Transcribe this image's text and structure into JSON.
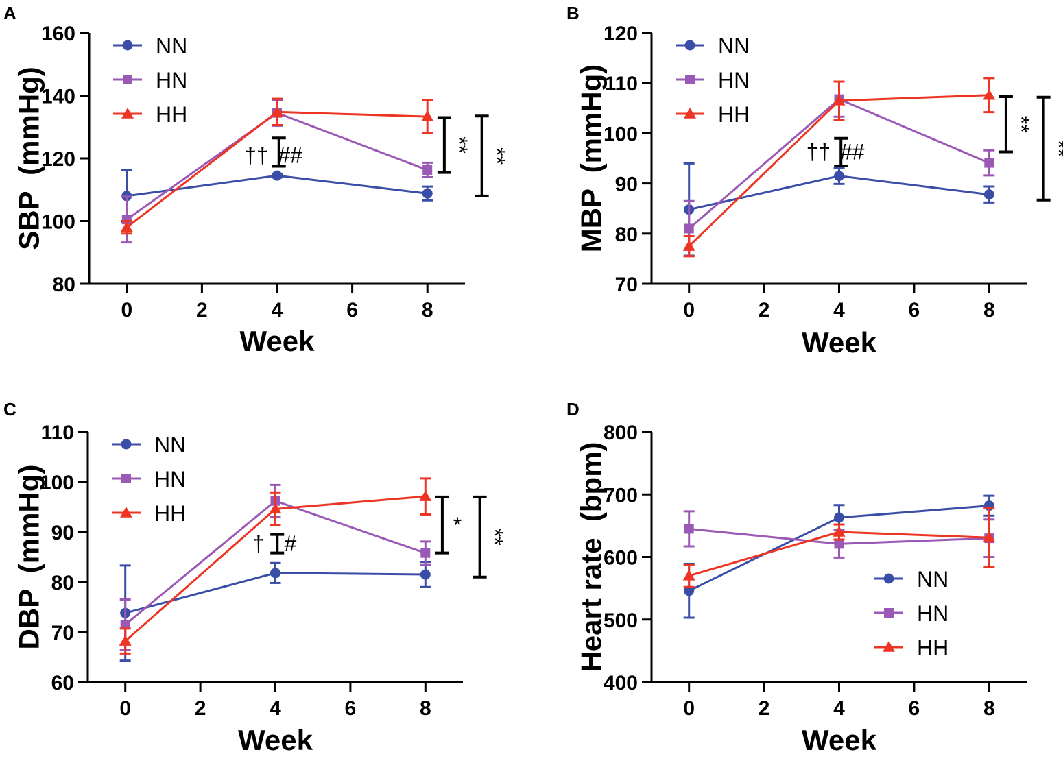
{
  "colors": {
    "NN": "#3a4ea8",
    "HN": "#9b59b6",
    "HH": "#ee3524",
    "sig": "#000000",
    "dagger": "#ee3524",
    "hash": "#9b59b6"
  },
  "chart_data": [
    {
      "type": "line",
      "panel": "A",
      "xlabel": "Week",
      "ylabel": "SBP  (mmHg)",
      "x": [
        0,
        4,
        8
      ],
      "xlim": [
        -1,
        9
      ],
      "xticks": [
        0,
        2,
        4,
        6,
        8
      ],
      "ylim": [
        80,
        160
      ],
      "yticks": [
        80,
        100,
        120,
        140,
        160
      ],
      "legend": "top-left",
      "series": [
        {
          "name": "NN",
          "marker": "circle",
          "values": [
            108,
            114.5,
            108.8
          ],
          "errors": [
            8.3,
            0.6,
            2.2
          ]
        },
        {
          "name": "HN",
          "marker": "square",
          "values": [
            100.5,
            134.5,
            116.3
          ],
          "errors": [
            7.3,
            4.1,
            2.3
          ]
        },
        {
          "name": "HH",
          "marker": "triangle",
          "values": [
            98,
            134.8,
            133.3
          ],
          "errors": [
            2,
            4.2,
            5.3
          ]
        }
      ],
      "brackets": [
        {
          "x": 4.05,
          "y1": 117.5,
          "y2": 126.5,
          "label": "",
          "label_pos": "right"
        },
        {
          "x": 8.45,
          "y1": 115.5,
          "y2": 133,
          "label": "**",
          "label_pos": "right",
          "rotate": true
        },
        {
          "x": 9.45,
          "y1": 108,
          "y2": 133.5,
          "label": "**",
          "label_pos": "right",
          "rotate": true
        }
      ],
      "annotations": [
        {
          "text": "††",
          "x": 3.45,
          "y": 121,
          "color_key": "dagger"
        },
        {
          "text": "##",
          "x": 4.35,
          "y": 121,
          "color_key": "hash"
        }
      ]
    },
    {
      "type": "line",
      "panel": "B",
      "xlabel": "Week",
      "ylabel": "MBP  (mmHg)",
      "x": [
        0,
        4,
        8
      ],
      "xlim": [
        -1,
        9
      ],
      "xticks": [
        0,
        2,
        4,
        6,
        8
      ],
      "ylim": [
        70,
        120
      ],
      "yticks": [
        70,
        80,
        90,
        100,
        110,
        120
      ],
      "legend": "top-left",
      "series": [
        {
          "name": "NN",
          "marker": "circle",
          "values": [
            84.8,
            91.5,
            87.8
          ],
          "errors": [
            9.2,
            1.6,
            1.6
          ]
        },
        {
          "name": "HN",
          "marker": "square",
          "values": [
            81,
            106.8,
            94.1
          ],
          "errors": [
            5.5,
            3.5,
            2.5
          ]
        },
        {
          "name": "HH",
          "marker": "triangle",
          "values": [
            77.5,
            106.5,
            107.6
          ],
          "errors": [
            2,
            3.8,
            3.4
          ]
        }
      ],
      "brackets": [
        {
          "x": 4.05,
          "y1": 93.5,
          "y2": 99,
          "label": "",
          "label_pos": "right"
        },
        {
          "x": 8.45,
          "y1": 96.3,
          "y2": 107.3,
          "label": "**",
          "label_pos": "right",
          "rotate": true
        },
        {
          "x": 9.45,
          "y1": 86.7,
          "y2": 107.2,
          "label": "**",
          "label_pos": "right",
          "rotate": true
        }
      ],
      "annotations": [
        {
          "text": "††",
          "x": 3.45,
          "y": 96.3,
          "color_key": "dagger"
        },
        {
          "text": "##",
          "x": 4.35,
          "y": 96.3,
          "color_key": "hash"
        }
      ]
    },
    {
      "type": "line",
      "panel": "C",
      "xlabel": "Week",
      "ylabel": "DBP  (mmHg)",
      "x": [
        0,
        4,
        8
      ],
      "xlim": [
        -1,
        9
      ],
      "xticks": [
        0,
        2,
        4,
        6,
        8
      ],
      "ylim": [
        60,
        110
      ],
      "yticks": [
        60,
        70,
        80,
        90,
        100,
        110
      ],
      "legend": "top-left",
      "series": [
        {
          "name": "NN",
          "marker": "circle",
          "values": [
            73.8,
            81.8,
            81.5
          ],
          "errors": [
            9.5,
            2,
            2.5
          ]
        },
        {
          "name": "HN",
          "marker": "square",
          "values": [
            71.5,
            96.2,
            85.8
          ],
          "errors": [
            5,
            3.2,
            2.3
          ]
        },
        {
          "name": "HH",
          "marker": "triangle",
          "values": [
            68.2,
            94.6,
            97.1
          ],
          "errors": [
            2.5,
            3.3,
            3.6
          ]
        }
      ],
      "brackets": [
        {
          "x": 4.05,
          "y1": 85.8,
          "y2": 89.5,
          "label": "",
          "label_pos": "right"
        },
        {
          "x": 8.45,
          "y1": 85.8,
          "y2": 97,
          "label": "*",
          "label_pos": "right"
        },
        {
          "x": 9.45,
          "y1": 81,
          "y2": 97,
          "label": "**",
          "label_pos": "right",
          "rotate": true
        }
      ],
      "annotations": [
        {
          "text": "†",
          "x": 3.55,
          "y": 87.7,
          "color_key": "dagger"
        },
        {
          "text": "#",
          "x": 4.4,
          "y": 87.7,
          "color_key": "hash"
        }
      ]
    },
    {
      "type": "line",
      "panel": "D",
      "xlabel": "Week",
      "ylabel": "Heart rate  (bpm)",
      "x": [
        0,
        4,
        8
      ],
      "xlim": [
        -1,
        9
      ],
      "xticks": [
        0,
        2,
        4,
        6,
        8
      ],
      "ylim": [
        400,
        800
      ],
      "yticks": [
        400,
        500,
        600,
        700,
        800
      ],
      "legend": "bottom-right",
      "series": [
        {
          "name": "NN",
          "marker": "circle",
          "values": [
            546,
            663,
            682
          ],
          "errors": [
            43,
            20,
            16
          ]
        },
        {
          "name": "HN",
          "marker": "square",
          "values": [
            645,
            621,
            630
          ],
          "errors": [
            28,
            22,
            30
          ]
        },
        {
          "name": "HH",
          "marker": "triangle",
          "values": [
            570,
            640,
            631
          ],
          "errors": [
            18,
            12,
            47
          ]
        }
      ],
      "brackets": [],
      "annotations": []
    }
  ]
}
